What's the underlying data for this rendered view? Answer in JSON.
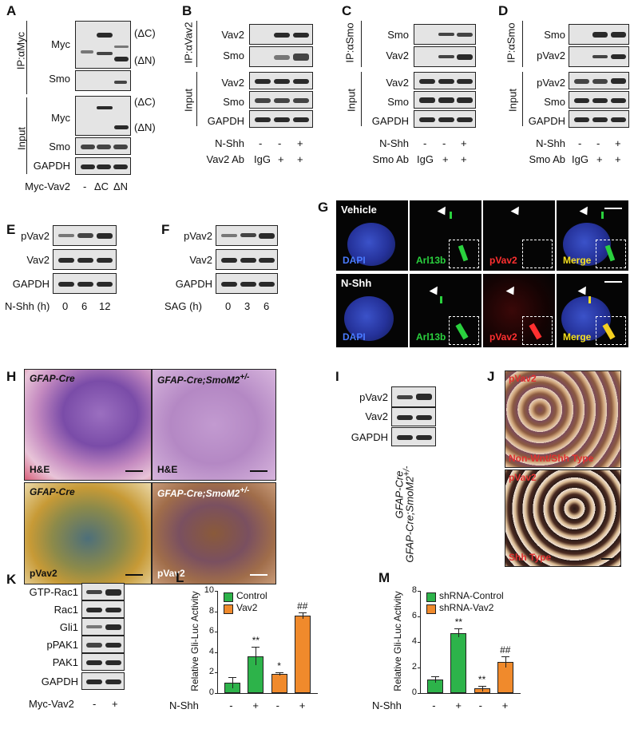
{
  "panels": {
    "A": {
      "letter": "A",
      "ip_label": "IP:αMyc",
      "input_label": "Input",
      "rows": [
        "Myc",
        "Smo",
        "Myc",
        "Smo",
        "GAPDH"
      ],
      "dc": "(ΔC)",
      "dn": "(ΔN)",
      "x_label": "Myc-Vav2",
      "x_ticks": [
        "-",
        "ΔC",
        "ΔN"
      ]
    },
    "B": {
      "letter": "B",
      "ip_label": "IP:αVav2",
      "input_label": "Input",
      "rows": [
        "Vav2",
        "Smo",
        "Vav2",
        "Smo",
        "GAPDH"
      ],
      "cond1_label": "N-Shh",
      "cond1_ticks": [
        "-",
        "-",
        "+"
      ],
      "cond2_label": "Vav2 Ab",
      "cond2_ticks": [
        "IgG",
        "+",
        "+"
      ]
    },
    "C": {
      "letter": "C",
      "ip_label": "IP:αSmo",
      "input_label": "Input",
      "rows": [
        "Smo",
        "Vav2",
        "Vav2",
        "Smo",
        "GAPDH"
      ],
      "cond1_label": "N-Shh",
      "cond1_ticks": [
        "-",
        "-",
        "+"
      ],
      "cond2_label": "Smo Ab",
      "cond2_ticks": [
        "IgG",
        "+",
        "+"
      ]
    },
    "D": {
      "letter": "D",
      "ip_label": "IP:αSmo",
      "input_label": "Input",
      "rows": [
        "Smo",
        "pVav2",
        "pVav2",
        "Smo",
        "GAPDH"
      ],
      "cond1_label": "N-Shh",
      "cond1_ticks": [
        "-",
        "-",
        "+"
      ],
      "cond2_label": "Smo Ab",
      "cond2_ticks": [
        "IgG",
        "+",
        "+"
      ]
    },
    "E": {
      "letter": "E",
      "rows": [
        "pVav2",
        "Vav2",
        "GAPDH"
      ],
      "x_label": "N-Shh (h)",
      "x_ticks": [
        "0",
        "6",
        "12"
      ]
    },
    "F": {
      "letter": "F",
      "rows": [
        "pVav2",
        "Vav2",
        "GAPDH"
      ],
      "x_label": "SAG (h)",
      "x_ticks": [
        "0",
        "3",
        "6"
      ]
    },
    "G": {
      "letter": "G",
      "row_titles": [
        "Vehicle",
        "N-Shh"
      ],
      "channels": [
        "DAPI",
        "Arl13b",
        "pVav2",
        "Merge"
      ]
    },
    "H": {
      "letter": "H",
      "genotype1": "GFAP-Cre",
      "genotype2": "GFAP-Cre;SmoM2",
      "genotype2_sup": "+/-",
      "stain1": "H&E",
      "stain2": "pVav2"
    },
    "I": {
      "letter": "I",
      "rows": [
        "pVav2",
        "Vav2",
        "GAPDH"
      ],
      "lane1": "GFAP-Cre",
      "lane2": "GFAP-Cre;SmoM2",
      "lane2_sup": "+/-"
    },
    "J": {
      "letter": "J",
      "stain": "pVav2",
      "type1": "Non-Wnt/Shh Type",
      "type2": "Shh Type"
    },
    "K": {
      "letter": "K",
      "rows": [
        "GTP-Rac1",
        "Rac1",
        "Gli1",
        "pPAK1",
        "PAK1",
        "GAPDH"
      ],
      "x_label": "Myc-Vav2",
      "x_ticks": [
        "-",
        "+"
      ]
    }
  },
  "chart_data": [
    {
      "panel": "L",
      "type": "bar",
      "ylabel": "Relative Gli-Luc Activity",
      "ylim": [
        0,
        10
      ],
      "yticks": [
        "0",
        "2",
        "4",
        "6",
        "8",
        "10"
      ],
      "x_label": "N-Shh",
      "categories": [
        "-",
        "+",
        "-",
        "+"
      ],
      "series": [
        {
          "name": "Control",
          "color": "#2db34a",
          "bars": [
            0,
            1
          ]
        },
        {
          "name": "Vav2",
          "color": "#f08a2c",
          "bars": [
            2,
            3
          ]
        }
      ],
      "values": [
        1.05,
        3.6,
        1.85,
        7.6
      ],
      "errors": [
        0.55,
        0.9,
        0.15,
        0.3
      ],
      "bar_colors": [
        "#2db34a",
        "#2db34a",
        "#f08a2c",
        "#f08a2c"
      ],
      "significance": [
        "",
        "**",
        "*",
        "##"
      ]
    },
    {
      "panel": "M",
      "type": "bar",
      "ylabel": "Relative Gli-Luc Activity",
      "ylim": [
        0,
        8
      ],
      "yticks": [
        "0",
        "2",
        "4",
        "6",
        "8"
      ],
      "x_label": "N-Shh",
      "categories": [
        "-",
        "+",
        "-",
        "+"
      ],
      "series": [
        {
          "name": "shRNA-Control",
          "color": "#2db34a",
          "bars": [
            0,
            1
          ]
        },
        {
          "name": "shRNA-Vav2",
          "color": "#f08a2c",
          "bars": [
            2,
            3
          ]
        }
      ],
      "values": [
        1.05,
        4.7,
        0.35,
        2.45
      ],
      "errors": [
        0.25,
        0.35,
        0.2,
        0.45
      ],
      "bar_colors": [
        "#2db34a",
        "#2db34a",
        "#f08a2c",
        "#f08a2c"
      ],
      "significance": [
        "",
        "**",
        "**",
        "##"
      ]
    }
  ],
  "letters": {
    "L": "L",
    "M": "M"
  }
}
